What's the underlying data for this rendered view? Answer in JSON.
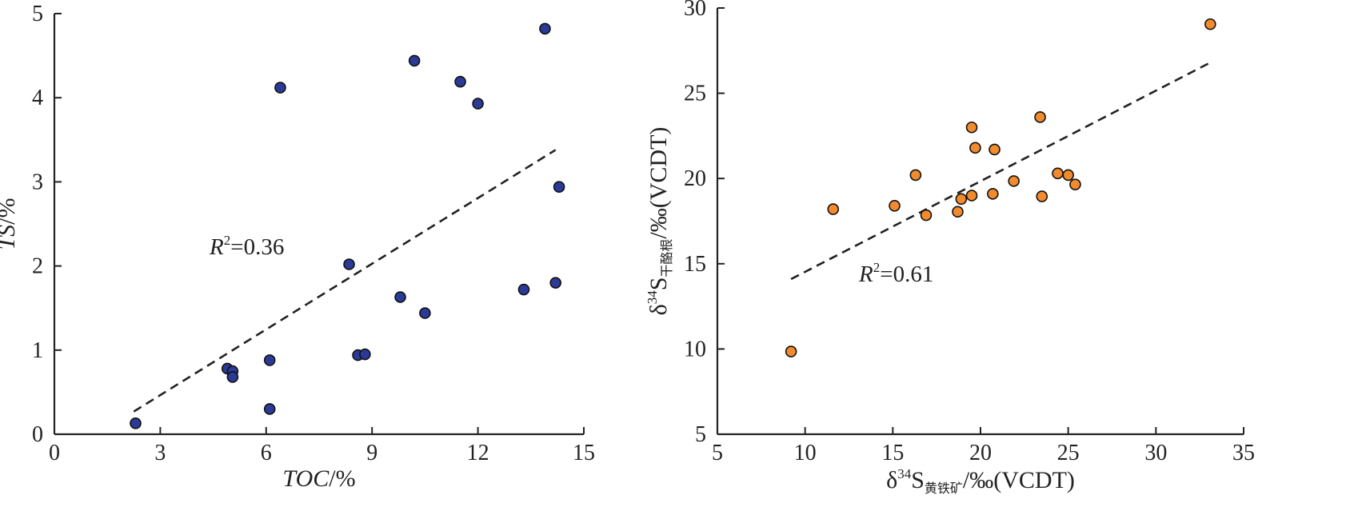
{
  "chart_data": [
    {
      "type": "scatter",
      "xlabel": "TOC/%",
      "ylabel": "TS/%",
      "xlim": [
        0,
        15
      ],
      "ylim": [
        0,
        5
      ],
      "xticks": [
        0,
        3,
        6,
        9,
        12,
        15
      ],
      "yticks": [
        0,
        1,
        2,
        3,
        4,
        5
      ],
      "marker_color": "#2b3a97",
      "r2_label": {
        "var": "R",
        "exp": "2",
        "value": "=0.36"
      },
      "trendline": {
        "style": "dashed",
        "x": [
          2.25,
          14.2
        ],
        "y": [
          0.27,
          3.38
        ]
      },
      "series": [
        {
          "points": [
            [
              2.3,
              0.13
            ],
            [
              4.9,
              0.78
            ],
            [
              5.05,
              0.75
            ],
            [
              5.05,
              0.68
            ],
            [
              6.1,
              0.88
            ],
            [
              6.1,
              0.3
            ],
            [
              6.4,
              4.12
            ],
            [
              8.35,
              2.02
            ],
            [
              8.6,
              0.94
            ],
            [
              8.8,
              0.95
            ],
            [
              9.8,
              1.63
            ],
            [
              10.2,
              4.44
            ],
            [
              10.5,
              1.44
            ],
            [
              11.5,
              4.19
            ],
            [
              12.0,
              3.93
            ],
            [
              13.3,
              1.72
            ],
            [
              13.9,
              4.82
            ],
            [
              14.2,
              1.8
            ],
            [
              14.3,
              2.94
            ]
          ]
        }
      ]
    },
    {
      "type": "scatter",
      "xlabel": {
        "prefix": "δ",
        "sup": "34",
        "base": "S",
        "sub": "黄铁矿",
        "suffix": "/‰(VCDT)"
      },
      "ylabel": {
        "prefix": "δ",
        "sup": "34",
        "base": "S",
        "sub": "干酪根",
        "suffix": "/‰(VCDT)"
      },
      "xlim": [
        5,
        35
      ],
      "ylim": [
        5,
        30
      ],
      "xticks": [
        5,
        10,
        15,
        20,
        25,
        30,
        35
      ],
      "yticks": [
        5,
        10,
        15,
        20,
        25,
        30
      ],
      "marker_color": "#f28a2e",
      "r2_label": {
        "var": "R",
        "exp": "2",
        "value": "=0.61"
      },
      "trendline": {
        "style": "dashed",
        "x": [
          9.2,
          33.1
        ],
        "y": [
          14.1,
          26.8
        ]
      },
      "series": [
        {
          "points": [
            [
              9.2,
              9.85
            ],
            [
              11.6,
              18.2
            ],
            [
              15.1,
              18.4
            ],
            [
              16.3,
              20.2
            ],
            [
              16.9,
              17.85
            ],
            [
              18.7,
              18.05
            ],
            [
              18.9,
              18.8
            ],
            [
              19.5,
              19.0
            ],
            [
              19.5,
              23.0
            ],
            [
              19.7,
              21.8
            ],
            [
              20.7,
              19.1
            ],
            [
              20.8,
              21.7
            ],
            [
              21.9,
              19.85
            ],
            [
              23.4,
              23.6
            ],
            [
              23.5,
              18.95
            ],
            [
              24.4,
              20.3
            ],
            [
              25.0,
              20.2
            ],
            [
              25.4,
              19.65
            ],
            [
              33.1,
              29.05
            ]
          ]
        }
      ]
    }
  ]
}
